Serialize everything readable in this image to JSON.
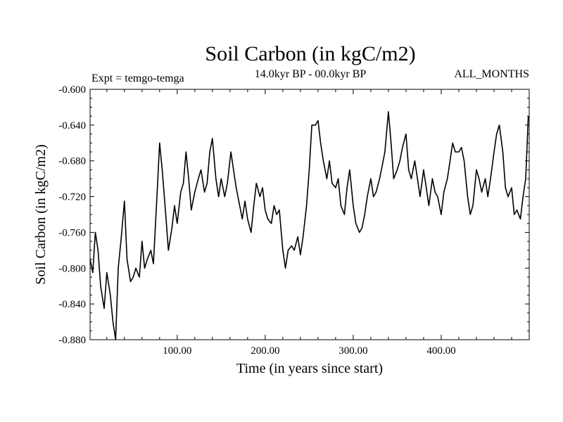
{
  "chart_data": {
    "type": "line",
    "title": "Soil Carbon (in kgC/m2)",
    "subtitle": "14.0kyr BP - 00.0kyr BP",
    "left_note": "Expt = temgo-temga",
    "right_note": "ALL_MONTHS",
    "xlabel": "Time (in years since start)",
    "ylabel": "Soil Carbon (in kgC/m2)",
    "xlim": [
      1,
      500
    ],
    "ylim": [
      -0.88,
      -0.6
    ],
    "xticks": [
      100,
      200,
      300,
      400
    ],
    "xtick_labels": [
      "100.00",
      "200.00",
      "300.00",
      "400.00"
    ],
    "yticks": [
      -0.6,
      -0.64,
      -0.68,
      -0.72,
      -0.76,
      -0.8,
      -0.84,
      -0.88
    ],
    "ytick_labels": [
      "-0.600",
      "-0.640",
      "-0.680",
      "-0.720",
      "-0.760",
      "-0.800",
      "-0.840",
      "-0.880"
    ],
    "grid": false,
    "series": [
      {
        "name": "Soil Carbon",
        "color": "#000000",
        "x": [
          1,
          4,
          7,
          10,
          13,
          17,
          20,
          24,
          27,
          30,
          33,
          36,
          40,
          43,
          47,
          50,
          53,
          57,
          60,
          63,
          66,
          70,
          73,
          77,
          80,
          83,
          87,
          90,
          94,
          97,
          100,
          104,
          107,
          110,
          113,
          116,
          120,
          124,
          127,
          131,
          134,
          137,
          140,
          144,
          147,
          150,
          154,
          157,
          161,
          164,
          167,
          171,
          174,
          177,
          180,
          184,
          187,
          190,
          194,
          197,
          200,
          203,
          207,
          210,
          213,
          216,
          220,
          223,
          226,
          230,
          233,
          237,
          240,
          243,
          247,
          250,
          253,
          257,
          260,
          263,
          266,
          270,
          273,
          276,
          280,
          283,
          286,
          290,
          293,
          296,
          300,
          303,
          307,
          310,
          313,
          316,
          320,
          323,
          326,
          330,
          333,
          336,
          340,
          343,
          346,
          350,
          353,
          356,
          360,
          363,
          366,
          370,
          373,
          376,
          380,
          383,
          386,
          390,
          393,
          396,
          400,
          403,
          407,
          410,
          413,
          416,
          420,
          423,
          426,
          430,
          433,
          436,
          440,
          443,
          446,
          450,
          453,
          456,
          460,
          463,
          466,
          470,
          473,
          476,
          480,
          483,
          486,
          490,
          493,
          496,
          499
        ],
        "y": [
          -0.79,
          -0.805,
          -0.76,
          -0.78,
          -0.82,
          -0.845,
          -0.805,
          -0.83,
          -0.86,
          -0.88,
          -0.8,
          -0.77,
          -0.725,
          -0.79,
          -0.815,
          -0.81,
          -0.8,
          -0.81,
          -0.77,
          -0.8,
          -0.79,
          -0.78,
          -0.795,
          -0.72,
          -0.66,
          -0.69,
          -0.74,
          -0.78,
          -0.755,
          -0.73,
          -0.75,
          -0.715,
          -0.705,
          -0.67,
          -0.7,
          -0.735,
          -0.715,
          -0.7,
          -0.69,
          -0.715,
          -0.705,
          -0.67,
          -0.655,
          -0.7,
          -0.72,
          -0.7,
          -0.72,
          -0.705,
          -0.67,
          -0.69,
          -0.71,
          -0.73,
          -0.745,
          -0.725,
          -0.745,
          -0.76,
          -0.73,
          -0.705,
          -0.72,
          -0.71,
          -0.735,
          -0.745,
          -0.75,
          -0.73,
          -0.74,
          -0.735,
          -0.78,
          -0.8,
          -0.78,
          -0.775,
          -0.78,
          -0.765,
          -0.785,
          -0.765,
          -0.73,
          -0.69,
          -0.64,
          -0.64,
          -0.635,
          -0.66,
          -0.68,
          -0.7,
          -0.68,
          -0.705,
          -0.71,
          -0.7,
          -0.73,
          -0.74,
          -0.71,
          -0.69,
          -0.73,
          -0.75,
          -0.76,
          -0.755,
          -0.74,
          -0.72,
          -0.7,
          -0.72,
          -0.715,
          -0.7,
          -0.685,
          -0.67,
          -0.625,
          -0.66,
          -0.7,
          -0.69,
          -0.68,
          -0.665,
          -0.65,
          -0.69,
          -0.7,
          -0.68,
          -0.7,
          -0.72,
          -0.69,
          -0.71,
          -0.73,
          -0.7,
          -0.715,
          -0.72,
          -0.74,
          -0.715,
          -0.7,
          -0.68,
          -0.66,
          -0.67,
          -0.67,
          -0.665,
          -0.68,
          -0.72,
          -0.74,
          -0.73,
          -0.69,
          -0.7,
          -0.715,
          -0.7,
          -0.72,
          -0.7,
          -0.67,
          -0.65,
          -0.64,
          -0.67,
          -0.71,
          -0.72,
          -0.71,
          -0.74,
          -0.735,
          -0.745,
          -0.72,
          -0.7,
          -0.63
        ]
      }
    ]
  }
}
